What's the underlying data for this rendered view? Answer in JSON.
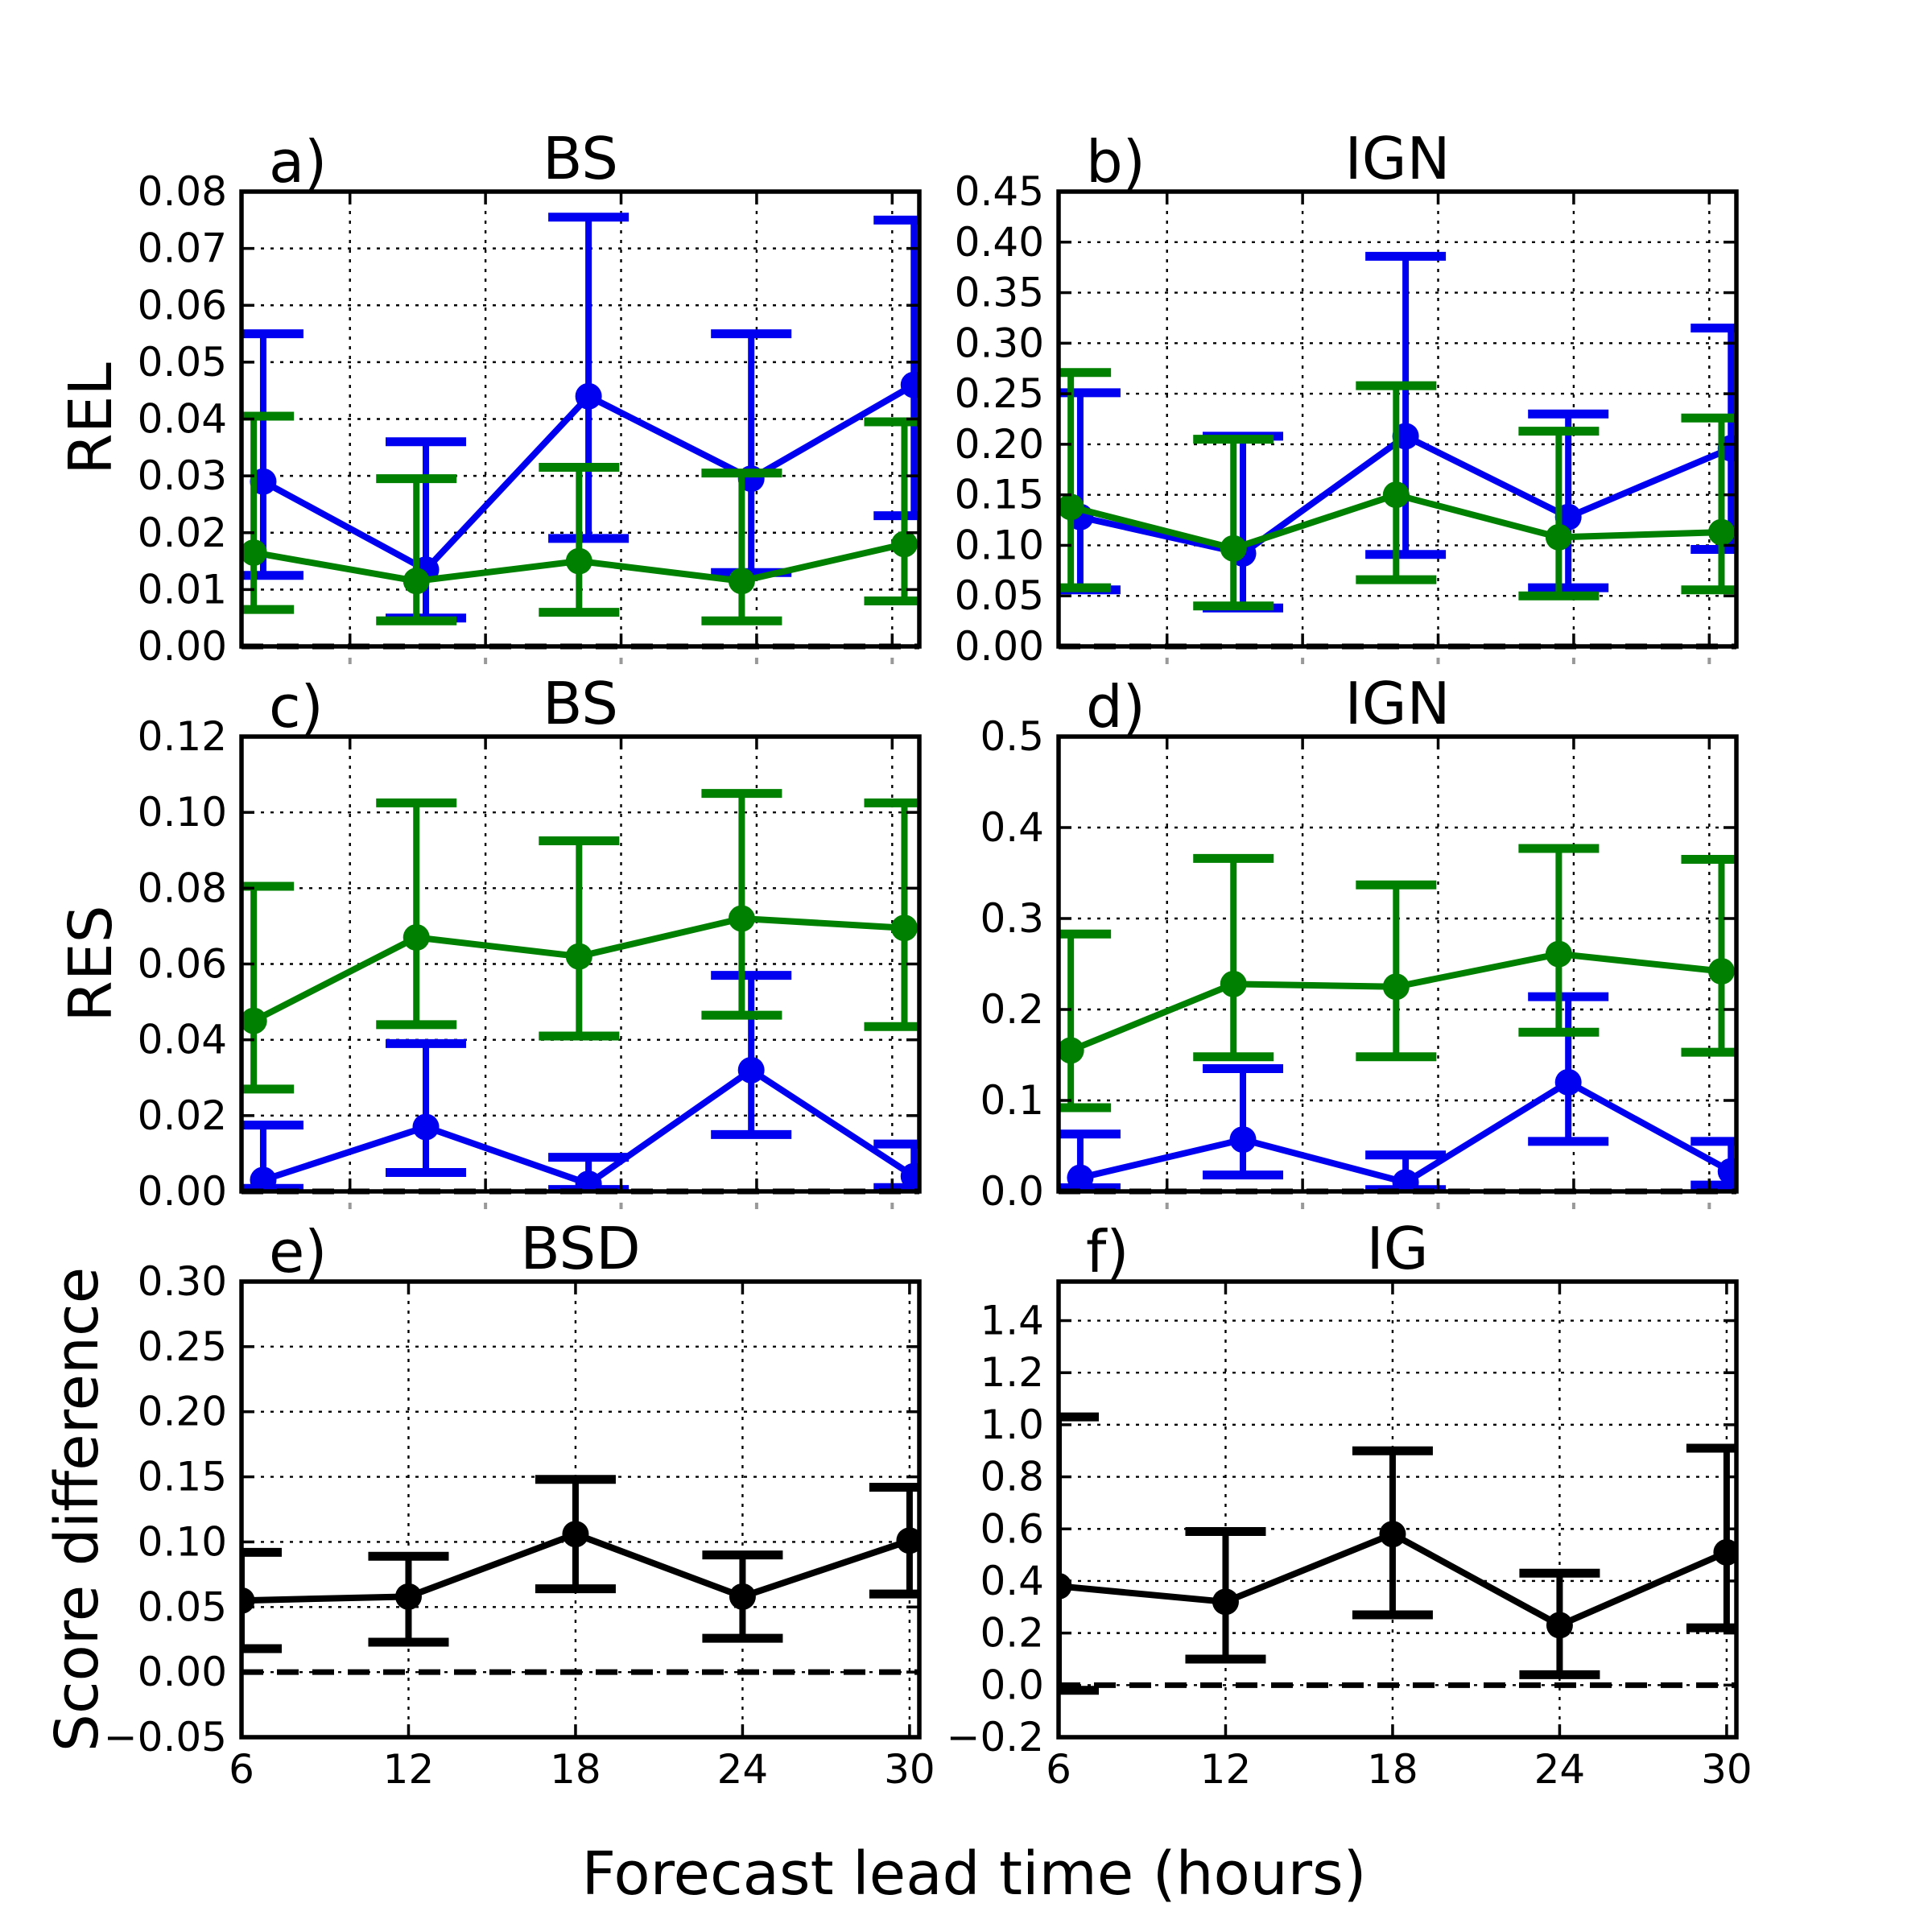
{
  "figure": {
    "xlabel": "Forecast lead time (hours)",
    "row_labels": [
      "REL",
      "RES",
      "Score difference"
    ],
    "background": "#ffffff",
    "grid_color": "#000000",
    "zero_line_color": "#000000"
  },
  "chart_data": [
    {
      "id": "a",
      "letter": "a)",
      "title": "BS",
      "type": "line",
      "row": 0,
      "col": 0,
      "row_label": "REL",
      "x": [
        6,
        12,
        18,
        24,
        30
      ],
      "xlim": [
        6,
        31
      ],
      "x_gridlines": [
        10,
        15,
        20,
        25,
        30
      ],
      "x_tick_labels": null,
      "ylim": [
        0,
        0.08
      ],
      "ytick_step": 0.01,
      "ytick_decimals": 2,
      "zero_dashed_line": 0,
      "series": [
        {
          "name": "blue-series",
          "color": "#0000f0",
          "x_offset": 0.8,
          "y": [
            0.029,
            0.0135,
            0.044,
            0.0295,
            0.046
          ],
          "err_lo": [
            0.0125,
            0.005,
            0.019,
            0.013,
            0.023
          ],
          "err_hi": [
            0.055,
            0.036,
            0.0755,
            0.055,
            0.075
          ]
        },
        {
          "name": "green-series",
          "color": "#008000",
          "x_offset": 0.45,
          "y": [
            0.0165,
            0.0115,
            0.015,
            0.0115,
            0.018
          ],
          "err_lo": [
            0.0065,
            0.0045,
            0.006,
            0.0045,
            0.008
          ],
          "err_hi": [
            0.0405,
            0.0295,
            0.0315,
            0.0305,
            0.0395
          ]
        }
      ]
    },
    {
      "id": "b",
      "letter": "b)",
      "title": "IGN",
      "type": "line",
      "row": 0,
      "col": 1,
      "row_label": "REL",
      "x": [
        6,
        12,
        18,
        24,
        30
      ],
      "xlim": [
        6,
        31
      ],
      "x_gridlines": [
        10,
        15,
        20,
        25,
        30
      ],
      "x_tick_labels": null,
      "ylim": [
        0,
        0.45
      ],
      "ytick_step": 0.05,
      "ytick_decimals": 2,
      "zero_dashed_line": 0,
      "series": [
        {
          "name": "blue-series",
          "color": "#0000f0",
          "x_offset": 0.8,
          "y": [
            0.128,
            0.092,
            0.208,
            0.128,
            0.196
          ],
          "err_lo": [
            0.056,
            0.038,
            0.091,
            0.058,
            0.096
          ],
          "err_hi": [
            0.251,
            0.208,
            0.386,
            0.23,
            0.315
          ]
        },
        {
          "name": "green-series",
          "color": "#008000",
          "x_offset": 0.45,
          "y": [
            0.138,
            0.097,
            0.15,
            0.108,
            0.113
          ],
          "err_lo": [
            0.058,
            0.04,
            0.066,
            0.05,
            0.056
          ],
          "err_hi": [
            0.271,
            0.205,
            0.258,
            0.213,
            0.226
          ]
        }
      ]
    },
    {
      "id": "c",
      "letter": "c)",
      "title": "BS",
      "type": "line",
      "row": 1,
      "col": 0,
      "row_label": "RES",
      "x": [
        6,
        12,
        18,
        24,
        30
      ],
      "xlim": [
        6,
        31
      ],
      "x_gridlines": [
        10,
        15,
        20,
        25,
        30
      ],
      "x_tick_labels": null,
      "ylim": [
        0,
        0.12
      ],
      "ytick_step": 0.02,
      "ytick_decimals": 2,
      "zero_dashed_line": 0,
      "series": [
        {
          "name": "blue-series",
          "color": "#0000f0",
          "x_offset": 0.8,
          "y": [
            0.003,
            0.017,
            0.002,
            0.032,
            0.004
          ],
          "err_lo": [
            0.0008,
            0.005,
            0.0005,
            0.015,
            0.001
          ],
          "err_hi": [
            0.0175,
            0.039,
            0.009,
            0.057,
            0.0125
          ]
        },
        {
          "name": "green-series",
          "color": "#008000",
          "x_offset": 0.45,
          "y": [
            0.045,
            0.067,
            0.062,
            0.072,
            0.0695
          ],
          "err_lo": [
            0.027,
            0.044,
            0.041,
            0.0465,
            0.0435
          ],
          "err_hi": [
            0.0805,
            0.1025,
            0.0925,
            0.105,
            0.1025
          ]
        }
      ]
    },
    {
      "id": "d",
      "letter": "d)",
      "title": "IGN",
      "type": "line",
      "row": 1,
      "col": 1,
      "row_label": "RES",
      "x": [
        6,
        12,
        18,
        24,
        30
      ],
      "xlim": [
        6,
        31
      ],
      "x_gridlines": [
        10,
        15,
        20,
        25,
        30
      ],
      "x_tick_labels": null,
      "ylim": [
        0,
        0.5
      ],
      "ytick_step": 0.1,
      "ytick_decimals": 1,
      "zero_dashed_line": 0,
      "series": [
        {
          "name": "blue-series",
          "color": "#0000f0",
          "x_offset": 0.8,
          "y": [
            0.015,
            0.057,
            0.01,
            0.12,
            0.022
          ],
          "err_lo": [
            0.004,
            0.018,
            0.002,
            0.055,
            0.007
          ],
          "err_hi": [
            0.063,
            0.135,
            0.04,
            0.214,
            0.055
          ]
        },
        {
          "name": "green-series",
          "color": "#008000",
          "x_offset": 0.45,
          "y": [
            0.155,
            0.228,
            0.225,
            0.261,
            0.242
          ],
          "err_lo": [
            0.092,
            0.148,
            0.148,
            0.175,
            0.153
          ],
          "err_hi": [
            0.283,
            0.366,
            0.337,
            0.377,
            0.365
          ]
        }
      ]
    },
    {
      "id": "e",
      "letter": "e)",
      "title": "BSD",
      "type": "line",
      "row": 2,
      "col": 0,
      "row_label": "Score difference",
      "x": [
        6,
        12,
        18,
        24,
        30
      ],
      "xlim": [
        6,
        30.35
      ],
      "x_gridlines": [
        12,
        18,
        24,
        30
      ],
      "x_tick_labels": [
        "6",
        "12",
        "18",
        "24",
        "30"
      ],
      "ylim": [
        -0.05,
        0.3
      ],
      "ytick_step": 0.05,
      "ytick_decimals": 2,
      "zero_dashed_line": 0,
      "series": [
        {
          "name": "black-series",
          "color": "#000000",
          "x_offset": 0,
          "y": [
            0.055,
            0.058,
            0.106,
            0.058,
            0.101
          ],
          "err_lo": [
            0.018,
            0.023,
            0.064,
            0.026,
            0.06
          ],
          "err_hi": [
            0.092,
            0.089,
            0.148,
            0.09,
            0.142
          ]
        }
      ]
    },
    {
      "id": "f",
      "letter": "f)",
      "title": "IG",
      "type": "line",
      "row": 2,
      "col": 1,
      "row_label": "Score difference",
      "x": [
        6,
        12,
        18,
        24,
        30
      ],
      "xlim": [
        6,
        30.35
      ],
      "x_gridlines": [
        12,
        18,
        24,
        30
      ],
      "x_tick_labels": [
        "6",
        "12",
        "18",
        "24",
        "30"
      ],
      "ylim": [
        -0.2,
        1.55
      ],
      "ytick_step": 0.2,
      "ytick_decimals": 1,
      "zero_dashed_line": 0,
      "series": [
        {
          "name": "black-series",
          "color": "#000000",
          "x_offset": 0,
          "y": [
            0.38,
            0.32,
            0.58,
            0.23,
            0.51
          ],
          "err_lo": [
            -0.02,
            0.1,
            0.27,
            0.04,
            0.22
          ],
          "err_hi": [
            1.03,
            0.59,
            0.9,
            0.43,
            0.91
          ]
        }
      ]
    }
  ]
}
